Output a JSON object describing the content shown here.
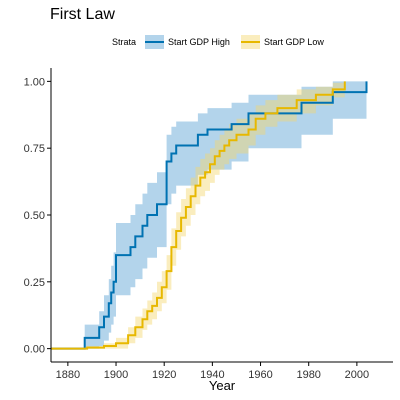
{
  "chart_data": {
    "type": "line",
    "step": true,
    "title": "First Law",
    "xlabel": "Year",
    "ylabel": "",
    "xlim": [
      1873,
      2015
    ],
    "ylim": [
      -0.05,
      1.05
    ],
    "x_ticks": [
      1880,
      1900,
      1920,
      1940,
      1960,
      1980,
      2000
    ],
    "y_ticks": [
      "0.00",
      "0.25",
      "0.50",
      "0.75",
      "1.00"
    ],
    "grid": false,
    "legend": {
      "title": "Strata",
      "position": "top",
      "entries": [
        "Start GDP High",
        "Start GDP Low"
      ]
    },
    "series": [
      {
        "name": "Start GDP High",
        "color": "#0072B2",
        "band_color": "#56A0D3",
        "points": [
          [
            1873,
            0,
            0,
            0
          ],
          [
            1887,
            0.04,
            0,
            0.09
          ],
          [
            1893,
            0.08,
            0.01,
            0.14
          ],
          [
            1895,
            0.12,
            0.03,
            0.2
          ],
          [
            1897,
            0.17,
            0.06,
            0.26
          ],
          [
            1898,
            0.21,
            0.09,
            0.31
          ],
          [
            1899,
            0.25,
            0.12,
            0.36
          ],
          [
            1900,
            0.35,
            0.2,
            0.47
          ],
          [
            1906,
            0.38,
            0.23,
            0.5
          ],
          [
            1908,
            0.42,
            0.26,
            0.54
          ],
          [
            1911,
            0.46,
            0.3,
            0.58
          ],
          [
            1913,
            0.5,
            0.34,
            0.62
          ],
          [
            1917,
            0.54,
            0.38,
            0.66
          ],
          [
            1921,
            0.7,
            0.54,
            0.8
          ],
          [
            1923,
            0.73,
            0.58,
            0.83
          ],
          [
            1925,
            0.76,
            0.61,
            0.85
          ],
          [
            1934,
            0.8,
            0.65,
            0.88
          ],
          [
            1938,
            0.82,
            0.67,
            0.9
          ],
          [
            1948,
            0.84,
            0.7,
            0.92
          ],
          [
            1955,
            0.88,
            0.75,
            0.95
          ],
          [
            1977,
            0.92,
            0.8,
            0.98
          ],
          [
            1990,
            0.96,
            0.86,
            1.0
          ],
          [
            2004,
            1.0,
            0.86,
            1.0
          ]
        ]
      },
      {
        "name": "Start GDP Low",
        "color": "#E7B800",
        "band_color": "#F5D76E",
        "points": [
          [
            1873,
            0,
            0,
            0
          ],
          [
            1888,
            0.004,
            0,
            0.01
          ],
          [
            1895,
            0.01,
            0,
            0.02
          ],
          [
            1900,
            0.02,
            0,
            0.04
          ],
          [
            1905,
            0.05,
            0.02,
            0.08
          ],
          [
            1908,
            0.08,
            0.04,
            0.12
          ],
          [
            1911,
            0.11,
            0.07,
            0.15
          ],
          [
            1913,
            0.14,
            0.09,
            0.18
          ],
          [
            1915,
            0.16,
            0.11,
            0.21
          ],
          [
            1917,
            0.19,
            0.14,
            0.25
          ],
          [
            1919,
            0.23,
            0.17,
            0.29
          ],
          [
            1921,
            0.29,
            0.22,
            0.35
          ],
          [
            1923,
            0.38,
            0.31,
            0.45
          ],
          [
            1925,
            0.44,
            0.37,
            0.51
          ],
          [
            1927,
            0.49,
            0.42,
            0.56
          ],
          [
            1929,
            0.53,
            0.46,
            0.6
          ],
          [
            1931,
            0.57,
            0.5,
            0.64
          ],
          [
            1933,
            0.61,
            0.54,
            0.68
          ],
          [
            1935,
            0.64,
            0.57,
            0.71
          ],
          [
            1937,
            0.66,
            0.59,
            0.73
          ],
          [
            1939,
            0.69,
            0.62,
            0.75
          ],
          [
            1941,
            0.72,
            0.65,
            0.78
          ],
          [
            1943,
            0.74,
            0.67,
            0.8
          ],
          [
            1945,
            0.76,
            0.69,
            0.82
          ],
          [
            1947,
            0.78,
            0.71,
            0.84
          ],
          [
            1950,
            0.8,
            0.73,
            0.86
          ],
          [
            1955,
            0.82,
            0.76,
            0.88
          ],
          [
            1958,
            0.86,
            0.8,
            0.91
          ],
          [
            1962,
            0.88,
            0.83,
            0.93
          ],
          [
            1967,
            0.9,
            0.85,
            0.95
          ],
          [
            1975,
            0.93,
            0.88,
            0.97
          ],
          [
            1983,
            0.95,
            0.91,
            0.98
          ],
          [
            1990,
            0.97,
            0.94,
            0.995
          ],
          [
            1995,
            1.0,
            0.97,
            1.0
          ]
        ]
      }
    ]
  }
}
